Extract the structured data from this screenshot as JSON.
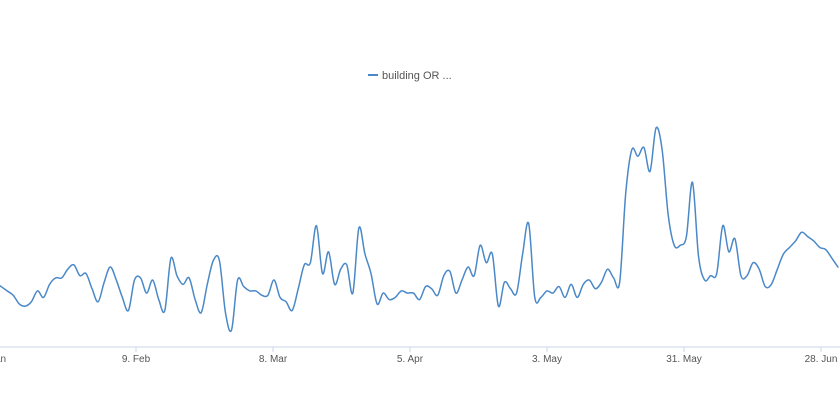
{
  "chart_data": {
    "type": "line",
    "grid": false,
    "legend_position": "top-center",
    "x_ticks": [
      "Jan",
      "9. Feb",
      "8. Mar",
      "5. Apr",
      "3. May",
      "31. May",
      "28. Jun"
    ],
    "series": [
      {
        "name": "building OR ...",
        "color": "#4a88c7",
        "values": [
          29,
          27,
          25,
          23,
          19,
          18,
          20,
          25,
          22,
          28,
          31,
          31,
          35,
          37,
          32,
          33,
          26,
          20,
          29,
          36,
          30,
          22,
          16,
          30,
          31,
          24,
          30,
          21,
          16,
          40,
          32,
          28,
          31,
          21,
          15,
          28,
          39,
          39,
          15,
          7,
          30,
          27,
          25,
          25,
          23,
          23,
          30,
          22,
          20,
          16,
          26,
          37,
          38,
          55,
          33,
          43,
          28,
          35,
          37,
          24,
          54,
          42,
          33,
          19,
          24,
          21,
          22,
          25,
          24,
          24,
          21,
          27,
          26,
          23,
          32,
          34,
          24,
          30,
          36,
          32,
          46,
          38,
          42,
          18,
          29,
          26,
          24,
          42,
          56,
          22,
          22,
          25,
          24,
          27,
          22,
          28,
          22,
          28,
          30,
          26,
          29,
          35,
          31,
          29,
          70,
          90,
          87,
          91,
          80,
          100,
          90,
          60,
          46,
          46,
          50,
          75,
          41,
          30,
          32,
          33,
          55,
          43,
          49,
          32,
          32,
          38,
          35,
          27,
          28,
          35,
          42,
          45,
          48,
          52,
          50,
          48,
          45,
          44,
          40,
          36
        ]
      }
    ],
    "ylim": [
      0,
      120
    ]
  }
}
